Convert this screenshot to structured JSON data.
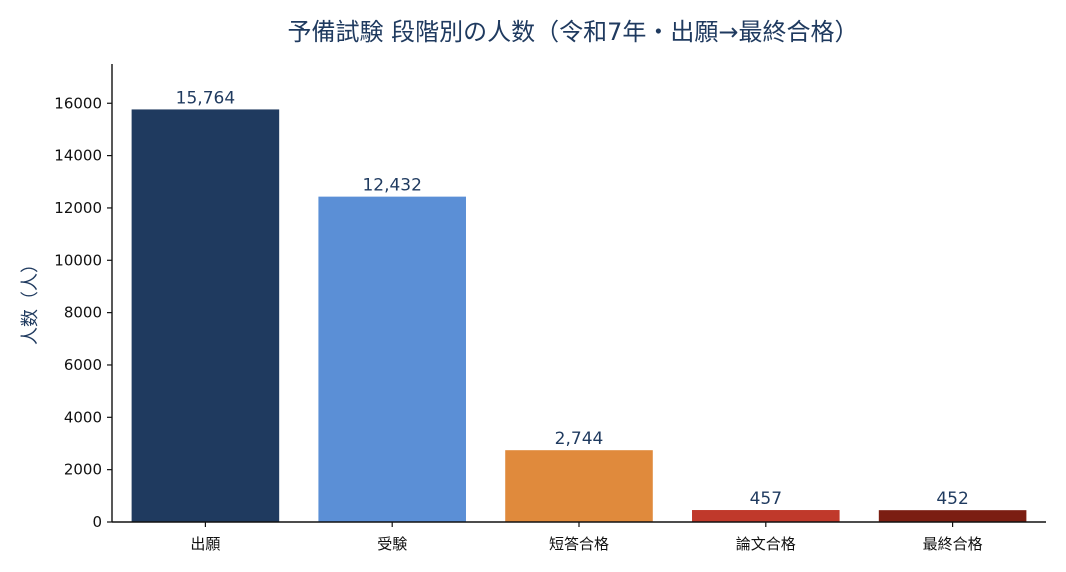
{
  "chart_data": {
    "type": "bar",
    "title": "予備試験 段階別の人数（令和7年・出願→最終合格）",
    "xlabel": "",
    "ylabel": "人数（人）",
    "categories": [
      "出願",
      "受験",
      "短答合格",
      "論文合格",
      "最終合格"
    ],
    "values": [
      15764,
      12432,
      2744,
      457,
      452
    ],
    "value_labels": [
      "15,764",
      "12,432",
      "2,744",
      "457",
      "452"
    ],
    "colors": [
      "#1f3a5f",
      "#5b8fd6",
      "#e08a3c",
      "#c0392b",
      "#7b1e12"
    ],
    "ylim": [
      0,
      17500
    ],
    "yticks": [
      0,
      2000,
      4000,
      6000,
      8000,
      10000,
      12000,
      14000,
      16000
    ],
    "grid": false,
    "legend": "none"
  }
}
